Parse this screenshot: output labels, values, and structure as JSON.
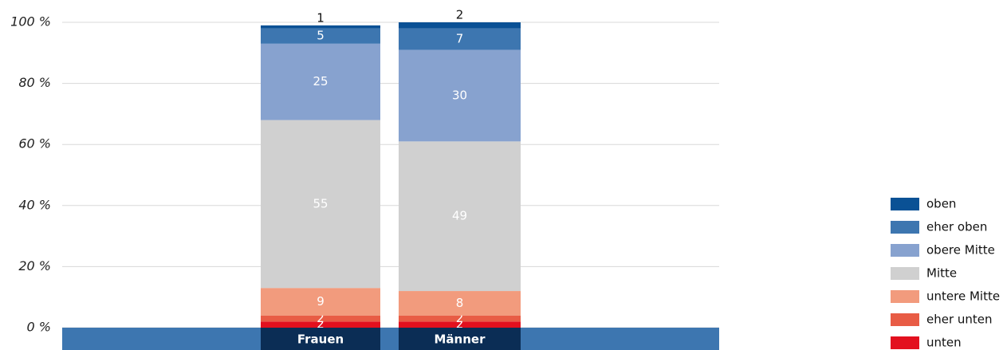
{
  "chart_data": {
    "type": "stacked_bar",
    "categories": [
      "Frauen",
      "Männer"
    ],
    "series": [
      {
        "name": "unten",
        "color": "#e3101e",
        "values": [
          2,
          2
        ]
      },
      {
        "name": "eher unten",
        "color": "#e85c45",
        "values": [
          2,
          2
        ]
      },
      {
        "name": "untere Mitte",
        "color": "#f29b7d",
        "values": [
          9,
          8
        ]
      },
      {
        "name": "Mitte",
        "color": "#d0d0d0",
        "values": [
          55,
          49
        ]
      },
      {
        "name": "obere Mitte",
        "color": "#87a2cf",
        "values": [
          25,
          30
        ]
      },
      {
        "name": "eher oben",
        "color": "#3d76b0",
        "values": [
          5,
          7
        ]
      },
      {
        "name": "oben",
        "color": "#0a5195",
        "values": [
          1,
          2
        ]
      }
    ],
    "ylim": [
      0,
      100
    ],
    "yticks": [
      {
        "value": 0,
        "label": "0 %"
      },
      {
        "value": 20,
        "label": "20 %"
      },
      {
        "value": 40,
        "label": "40 %"
      },
      {
        "value": 60,
        "label": "60 %"
      },
      {
        "value": 80,
        "label": "80 %"
      },
      {
        "value": 100,
        "label": "100 %"
      }
    ],
    "grid": true,
    "legend": "right"
  }
}
